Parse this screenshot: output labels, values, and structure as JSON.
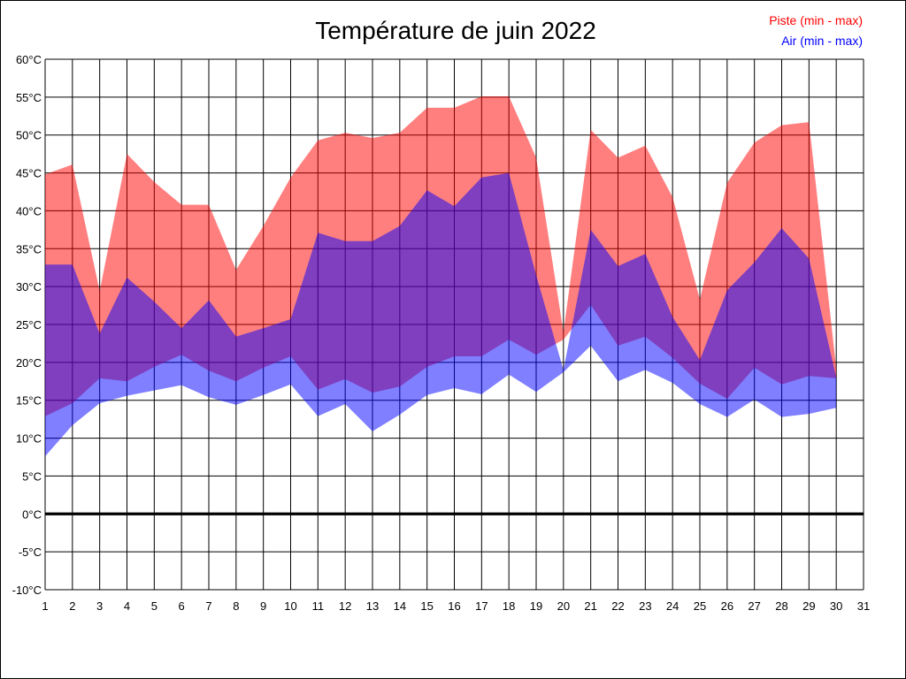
{
  "chart_data": {
    "type": "area",
    "title": "Température de juin 2022",
    "xlabel": "",
    "ylabel": "",
    "x": [
      1,
      2,
      3,
      4,
      5,
      6,
      7,
      8,
      9,
      10,
      11,
      12,
      13,
      14,
      15,
      16,
      17,
      18,
      19,
      20,
      21,
      22,
      23,
      24,
      25,
      26,
      27,
      28,
      29,
      30
    ],
    "xlim": [
      1,
      31
    ],
    "x_ticks": [
      "1",
      "2",
      "3",
      "4",
      "5",
      "6",
      "7",
      "8",
      "9",
      "10",
      "11",
      "12",
      "13",
      "14",
      "15",
      "16",
      "17",
      "18",
      "19",
      "20",
      "21",
      "22",
      "23",
      "24",
      "25",
      "26",
      "27",
      "28",
      "29",
      "30",
      "31"
    ],
    "ylim": [
      -10,
      60
    ],
    "y_ticks": [
      "-10°C",
      "-5°C",
      "0°C",
      "5°C",
      "10°C",
      "15°C",
      "20°C",
      "25°C",
      "30°C",
      "35°C",
      "40°C",
      "45°C",
      "50°C",
      "55°C",
      "60°C"
    ],
    "grid": true,
    "legend_placement": "top-right",
    "series": [
      {
        "name": "Piste (min - max)",
        "color": "#ff0000",
        "min": [
          12.9,
          14.6,
          17.9,
          17.5,
          19.4,
          21.0,
          18.9,
          17.5,
          19.3,
          20.8,
          16.4,
          17.8,
          16.0,
          16.8,
          19.4,
          20.8,
          20.8,
          23.0,
          21.0,
          23.0,
          27.6,
          22.2,
          23.4,
          20.6,
          17.2,
          15.2,
          19.3,
          17.1,
          18.2,
          17.9
        ],
        "max": [
          44.8,
          46.1,
          29.4,
          47.5,
          43.8,
          40.8,
          40.8,
          32.2,
          38.0,
          44.4,
          49.3,
          50.3,
          49.6,
          50.3,
          53.6,
          53.6,
          55.1,
          55.1,
          47.0,
          24.0,
          50.7,
          47.0,
          48.6,
          41.8,
          28.3,
          43.7,
          49.0,
          51.3,
          51.7,
          19.2
        ]
      },
      {
        "name": "Air (min - max)",
        "color": "#0000ff",
        "min": [
          7.6,
          11.7,
          14.6,
          15.6,
          16.3,
          17.0,
          15.4,
          14.4,
          15.7,
          17.1,
          12.9,
          14.5,
          10.9,
          13.1,
          15.7,
          16.6,
          15.8,
          18.4,
          16.1,
          18.7,
          22.2,
          17.5,
          19.0,
          17.3,
          14.5,
          12.8,
          15.1,
          12.8,
          13.2,
          14.0
        ],
        "max": [
          32.9,
          32.9,
          23.8,
          31.2,
          28.0,
          24.5,
          28.2,
          23.4,
          24.5,
          25.7,
          37.1,
          36.0,
          36.0,
          38.0,
          42.7,
          40.6,
          44.4,
          45.0,
          31.5,
          19.0,
          37.5,
          32.7,
          34.3,
          26.0,
          20.3,
          29.5,
          33.2,
          37.7,
          33.7,
          18.0
        ]
      }
    ]
  }
}
